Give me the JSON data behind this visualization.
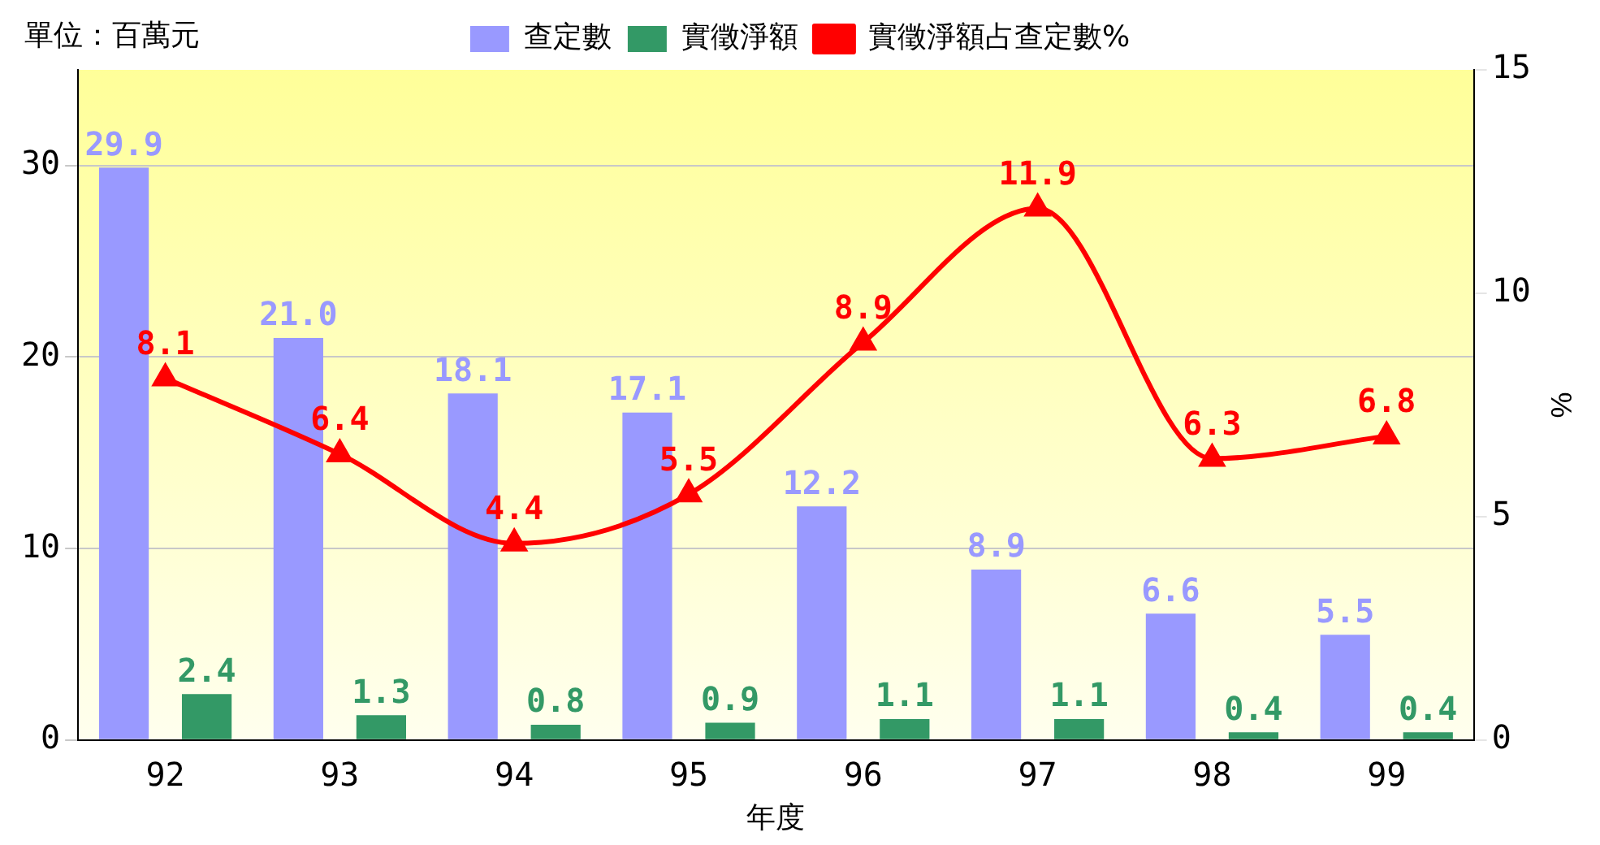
{
  "chart_data": {
    "type": "bar",
    "categories": [
      "92",
      "93",
      "94",
      "95",
      "96",
      "97",
      "98",
      "99"
    ],
    "xlabel": "年度",
    "y2label": "%",
    "annotations": [
      "單位：百萬元"
    ],
    "series": [
      {
        "name": "查定數",
        "color": "#9999ff",
        "values": [
          29.9,
          21.0,
          18.1,
          17.1,
          12.2,
          8.9,
          6.6,
          5.5
        ],
        "value_labels": [
          "29.9",
          "21.0",
          "18.1",
          "17.1",
          "12.2",
          "8.9",
          "6.6",
          "5.5"
        ]
      },
      {
        "name": "實徵淨額",
        "color": "#339966",
        "values": [
          2.4,
          1.3,
          0.8,
          0.9,
          1.1,
          1.1,
          0.4,
          0.4
        ],
        "value_labels": [
          "2.4",
          "1.3",
          "0.8",
          "0.9",
          "1.1",
          "1.1",
          "0.4",
          "0.4"
        ]
      },
      {
        "name": "實徵淨額占查定數%",
        "type": "line",
        "axis": "y2",
        "color": "#ff0000",
        "marker": "triangle",
        "values": [
          8.1,
          6.4,
          4.4,
          5.5,
          8.9,
          11.9,
          6.3,
          6.8
        ],
        "value_labels": [
          "8.1",
          "6.4",
          "4.4",
          "5.5",
          "8.9",
          "11.9",
          "6.3",
          "6.8"
        ]
      }
    ],
    "ylim": [
      0,
      35
    ],
    "yticks": [
      0,
      10,
      20,
      30
    ],
    "y2lim": [
      0,
      15
    ],
    "y2ticks": [
      0,
      5,
      10,
      15
    ],
    "grid": "y",
    "legend": "top"
  }
}
